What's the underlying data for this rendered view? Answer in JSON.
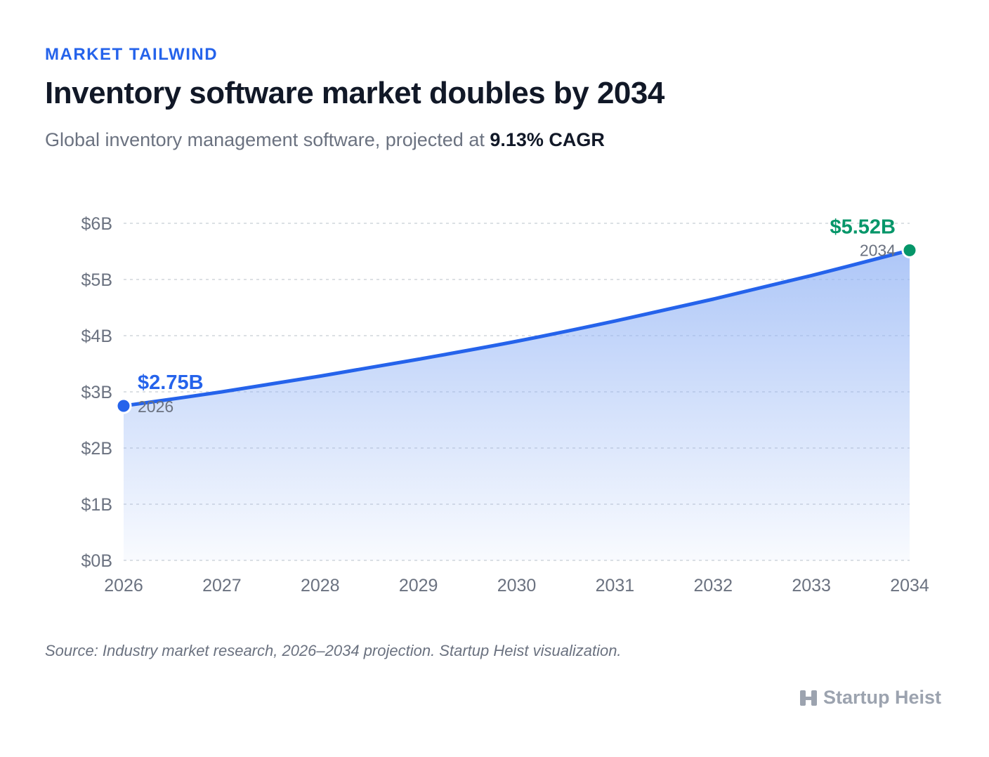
{
  "header": {
    "eyebrow": "MARKET TAILWIND",
    "title": "Inventory software market doubles by 2034",
    "subtitle_prefix": "Global inventory management software, projected at",
    "subtitle_emphasis": "9.13% CAGR"
  },
  "footer": {
    "source": "Source: Industry market research, 2026–2034 projection. Startup Heist visualization.",
    "brand": "Startup Heist",
    "brand_icon": "h-logo-icon"
  },
  "chart_data": {
    "type": "area",
    "title": "",
    "xlabel": "",
    "ylabel": "",
    "x": [
      2026,
      2027,
      2028,
      2029,
      2030,
      2031,
      2032,
      2033,
      2034
    ],
    "series": [
      {
        "values": [
          2.75,
          3.0,
          3.28,
          3.58,
          3.9,
          4.26,
          4.65,
          5.07,
          5.52
        ]
      }
    ],
    "ylim": [
      0,
      6
    ],
    "yticks": [
      "$0B",
      "$1B",
      "$2B",
      "$3B",
      "$4B",
      "$5B",
      "$6B"
    ],
    "xticks": [
      "2026",
      "2027",
      "2028",
      "2029",
      "2030",
      "2031",
      "2032",
      "2033",
      "2034"
    ],
    "grid": true,
    "annotations": [
      {
        "x": 2026,
        "y": 2.75,
        "value_label": "$2.75B",
        "year_label": "2026",
        "color": "#2563eb",
        "position": "right"
      },
      {
        "x": 2034,
        "y": 5.52,
        "value_label": "$5.52B",
        "year_label": "2034",
        "color": "#059669",
        "position": "left"
      }
    ],
    "colors": {
      "line": "#2563eb",
      "fill": "#93b4f5",
      "grid": "#d1d5db",
      "tick": "#6b7280"
    }
  }
}
